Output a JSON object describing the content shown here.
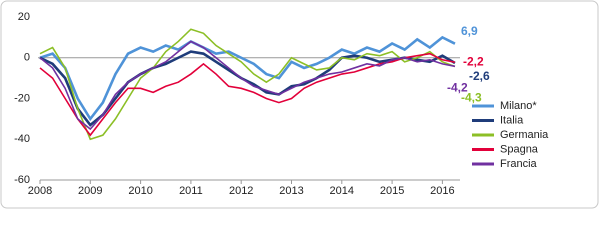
{
  "chart_data": {
    "type": "line",
    "x": [
      2008,
      2008.25,
      2008.5,
      2008.75,
      2009,
      2009.25,
      2009.5,
      2009.75,
      2010,
      2010.25,
      2010.5,
      2010.75,
      2011,
      2011.25,
      2011.5,
      2011.75,
      2012,
      2012.25,
      2012.5,
      2012.75,
      2013,
      2013.25,
      2013.5,
      2013.75,
      2014,
      2014.25,
      2014.5,
      2014.75,
      2015,
      2015.25,
      2015.5,
      2015.75,
      2016,
      2016.25
    ],
    "series": [
      {
        "name": "Milano*",
        "color": "#4f93d8",
        "values": [
          0,
          2,
          -5,
          -20,
          -30,
          -22,
          -8,
          2,
          5,
          3,
          6,
          4,
          8,
          5,
          2,
          3,
          0,
          -3,
          -8,
          -10,
          -2,
          -5,
          -3,
          0,
          4,
          2,
          5,
          3,
          7,
          4,
          9,
          5,
          10,
          6.9
        ],
        "value_labels": [
          null,
          null,
          null,
          null,
          null,
          null,
          null,
          null,
          null,
          null,
          null,
          null,
          null,
          null,
          null,
          null,
          null,
          null,
          null,
          null,
          null,
          null,
          null,
          null,
          null,
          null,
          null,
          null,
          null,
          null,
          null,
          null,
          null,
          "6,9"
        ]
      },
      {
        "name": "Italia",
        "color": "#1f3c7a",
        "values": [
          0,
          -3,
          -10,
          -25,
          -33,
          -28,
          -20,
          -12,
          -8,
          -5,
          -3,
          0,
          3,
          2,
          -2,
          -6,
          -10,
          -13,
          -17,
          -18,
          -14,
          -13,
          -10,
          -6,
          0,
          1,
          0,
          -2,
          -1,
          0,
          -1,
          -2,
          1,
          -2.6
        ],
        "value_labels": [
          null,
          null,
          null,
          null,
          null,
          null,
          null,
          null,
          null,
          null,
          null,
          null,
          null,
          null,
          null,
          null,
          null,
          null,
          null,
          null,
          null,
          null,
          null,
          null,
          null,
          null,
          null,
          null,
          null,
          null,
          null,
          null,
          null,
          "-2,6"
        ]
      },
      {
        "name": "Germania",
        "color": "#8cbf26",
        "values": [
          2,
          5,
          -5,
          -25,
          -40,
          -38,
          -30,
          -20,
          -10,
          -5,
          3,
          8,
          14,
          12,
          6,
          2,
          -2,
          -8,
          -12,
          -8,
          0,
          -3,
          -6,
          -5,
          0,
          -1,
          2,
          1,
          3,
          -2,
          0,
          3,
          -2,
          -4.3
        ],
        "value_labels": [
          null,
          null,
          null,
          null,
          null,
          null,
          null,
          null,
          null,
          null,
          null,
          null,
          null,
          null,
          null,
          null,
          null,
          null,
          null,
          null,
          null,
          null,
          null,
          null,
          null,
          null,
          null,
          null,
          null,
          null,
          null,
          null,
          null,
          "-4,3"
        ]
      },
      {
        "name": "Spagna",
        "color": "#e2003a",
        "values": [
          -5,
          -10,
          -20,
          -30,
          -38,
          -30,
          -22,
          -15,
          -15,
          -17,
          -14,
          -12,
          -8,
          -3,
          -8,
          -14,
          -15,
          -17,
          -20,
          -22,
          -20,
          -15,
          -12,
          -10,
          -8,
          -7,
          -5,
          -3,
          -2,
          0,
          1,
          2,
          -1,
          -2.2
        ],
        "value_labels": [
          null,
          null,
          null,
          null,
          null,
          null,
          null,
          null,
          null,
          null,
          null,
          null,
          null,
          null,
          null,
          null,
          null,
          null,
          null,
          null,
          null,
          null,
          null,
          null,
          null,
          null,
          null,
          null,
          null,
          null,
          null,
          null,
          null,
          "-2,2"
        ]
      },
      {
        "name": "Francia",
        "color": "#7030a0",
        "values": [
          0,
          -5,
          -15,
          -30,
          -35,
          -28,
          -18,
          -12,
          -8,
          -5,
          -2,
          3,
          8,
          5,
          0,
          -5,
          -10,
          -14,
          -16,
          -18,
          -15,
          -12,
          -10,
          -8,
          -7,
          -5,
          -3,
          -4,
          -1,
          0,
          -2,
          -1,
          -3,
          -4.2
        ],
        "value_labels": [
          null,
          null,
          null,
          null,
          null,
          null,
          null,
          null,
          null,
          null,
          null,
          null,
          null,
          null,
          null,
          null,
          null,
          null,
          null,
          null,
          null,
          null,
          null,
          null,
          null,
          null,
          null,
          null,
          null,
          null,
          null,
          null,
          null,
          "-4,2"
        ]
      }
    ],
    "xlim": [
      2008,
      2016.35
    ],
    "xticks": [
      2008,
      2009,
      2010,
      2011,
      2012,
      2013,
      2014,
      2015,
      2016
    ],
    "ylim": [
      -60,
      20
    ],
    "yticks": [
      20,
      0,
      -20,
      -40,
      -60
    ],
    "legend": "lower right"
  }
}
